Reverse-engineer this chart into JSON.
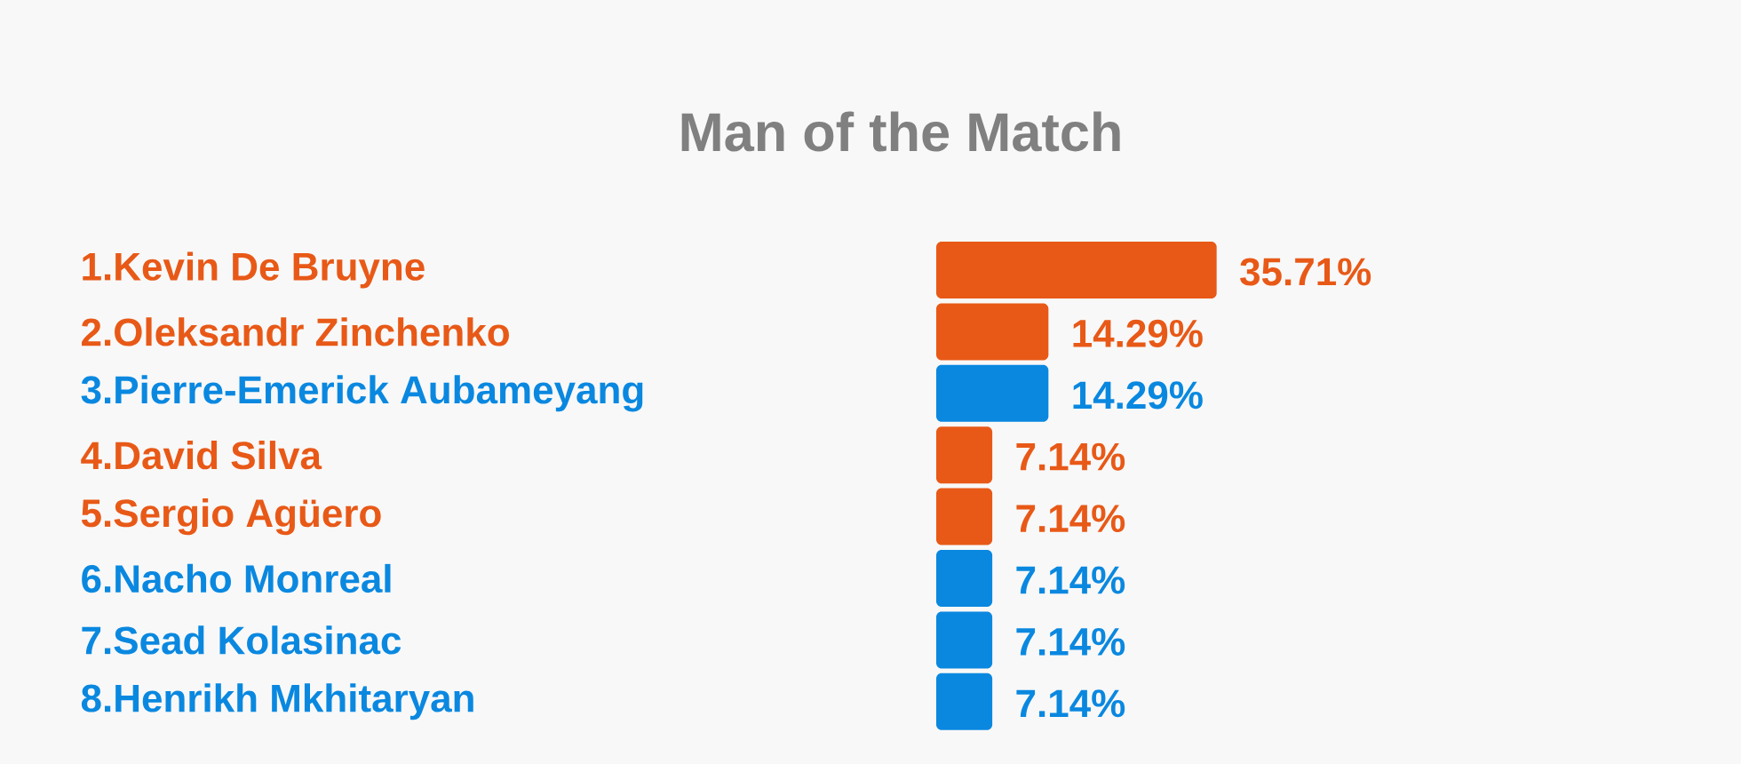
{
  "chart_data": {
    "type": "bar",
    "title": "Man of the Match",
    "orientation": "horizontal",
    "categories": [
      "1.Kevin De Bruyne",
      "2.Oleksandr Zinchenko",
      "3.Pierre-Emerick Aubameyang",
      "4.David Silva",
      "5.Sergio Agüero",
      "6.Nacho Monreal",
      "7.Sead Kolasinac",
      "8.Henrikh Mkhitaryan"
    ],
    "values": [
      35.71,
      14.29,
      14.29,
      7.14,
      7.14,
      7.14,
      7.14,
      7.14
    ],
    "colors": [
      "#e85917",
      "#e85917",
      "#0a88e0",
      "#e85917",
      "#e85917",
      "#0a88e0",
      "#0a88e0",
      "#0a88e0"
    ],
    "value_labels": [
      "35.71%",
      "14.29%",
      "14.29%",
      "7.14%",
      "7.14%",
      "7.14%",
      "7.14%",
      "7.14%"
    ],
    "tick_labels": "y"
  }
}
